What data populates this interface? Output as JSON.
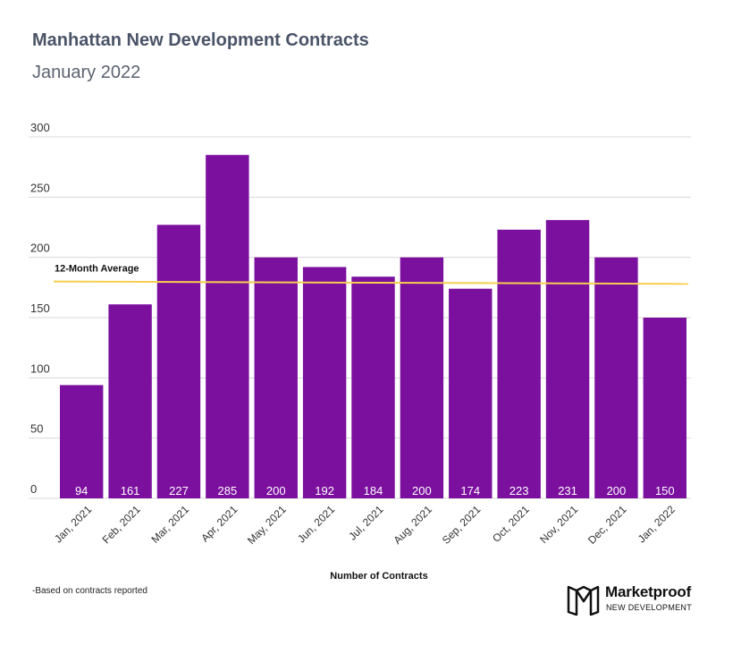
{
  "header": {
    "title": "Manhattan New Development Contracts",
    "subtitle": "January 2022"
  },
  "footnote": "-Based on contracts reported",
  "logo": {
    "name": "Marketproof",
    "tagline": "NEW DEVELOPMENT"
  },
  "colors": {
    "bar": "#7b0f9e",
    "average_line": "#f5cf4f",
    "grid": "#d9d9d9",
    "axis_text": "#333333",
    "bar_label": "#ffffff"
  },
  "chart_data": {
    "type": "bar",
    "title": "",
    "xlabel": "Number of Contracts",
    "ylabel": "",
    "ylim": [
      0,
      300
    ],
    "yticks": [
      0,
      50,
      100,
      150,
      200,
      250,
      300
    ],
    "grid": true,
    "categories": [
      "Jan, 2021",
      "Feb, 2021",
      "Mar, 2021",
      "Apr, 2021",
      "May, 2021",
      "Jun, 2021",
      "Jul, 2021",
      "Aug, 2021",
      "Sep, 2021",
      "Oct, 2021",
      "Nov, 2021",
      "Dec, 2021",
      "Jan, 2022"
    ],
    "values": [
      94,
      161,
      227,
      285,
      200,
      192,
      184,
      200,
      174,
      223,
      231,
      200,
      150
    ],
    "average_line": {
      "label": "12-Month Average",
      "start_value": 180,
      "end_value": 178
    }
  }
}
